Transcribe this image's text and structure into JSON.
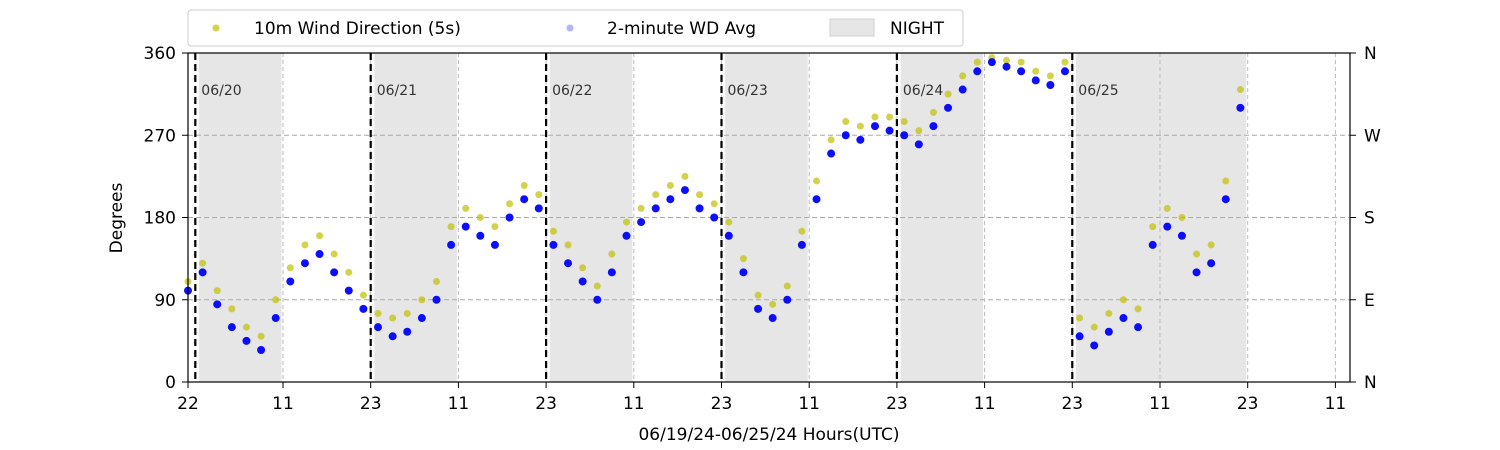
{
  "chart_data": {
    "type": "scatter",
    "title": "",
    "xlabel": "06/19/24-06/25/24  Hours(UTC)",
    "ylabel": "Degrees",
    "xlim": [
      22,
      181
    ],
    "ylim": [
      0,
      360
    ],
    "x_ticks": [
      22,
      35,
      47,
      59,
      71,
      83,
      95,
      107,
      119,
      131,
      143,
      155,
      167,
      179,
      191
    ],
    "x_tick_labels": [
      "22",
      "11",
      "23",
      "11",
      "23",
      "11",
      "23",
      "11",
      "23",
      "11",
      "23",
      "11",
      "23",
      "11"
    ],
    "x_tick_hours": [
      22,
      35,
      47,
      59,
      71,
      83,
      95,
      107,
      119,
      131,
      143,
      155,
      167,
      179
    ],
    "y_ticks": [
      0,
      90,
      180,
      270,
      360
    ],
    "y_tick_labels": [
      "0",
      "90",
      "180",
      "270",
      "360"
    ],
    "y2_tick_labels": [
      "N",
      "E",
      "S",
      "W",
      "N"
    ],
    "grid": "dashed horizontal at 90, 180, 270",
    "legend": {
      "placement": "top",
      "entries": [
        {
          "label": "10m Wind Direction (5s)",
          "color": "#bfbf00",
          "marker": "circle"
        },
        {
          "label": "2-minute WD Avg",
          "color": "#0000ff",
          "marker": "circle"
        },
        {
          "label": "NIGHT",
          "color": "#e6e6e6",
          "marker": "rect"
        }
      ]
    },
    "day_markers": [
      {
        "hour": 23,
        "label": "06/20"
      },
      {
        "hour": 47,
        "label": "06/21"
      },
      {
        "hour": 71,
        "label": "06/22"
      },
      {
        "hour": 95,
        "label": "06/23"
      },
      {
        "hour": 119,
        "label": "06/24"
      },
      {
        "hour": 143,
        "label": "06/25"
      }
    ],
    "night_periods": [
      {
        "start": 23.5,
        "end": 34.8
      },
      {
        "start": 47.5,
        "end": 58.8
      },
      {
        "start": 71.5,
        "end": 82.8
      },
      {
        "start": 95.5,
        "end": 106.8
      },
      {
        "start": 119.5,
        "end": 130.8
      },
      {
        "start": 143.5,
        "end": 166.8
      }
    ],
    "series": [
      {
        "name": "2-minute WD Avg",
        "color": "#0000ff",
        "x": [
          22,
          24,
          26,
          28,
          30,
          32,
          34,
          36,
          38,
          40,
          42,
          44,
          46,
          48,
          50,
          52,
          54,
          56,
          58,
          60,
          62,
          64,
          66,
          68,
          70,
          72,
          74,
          76,
          78,
          80,
          82,
          84,
          86,
          88,
          90,
          92,
          94,
          96,
          98,
          100,
          102,
          104,
          106,
          108,
          110,
          112,
          114,
          116,
          118,
          120,
          122,
          124,
          126,
          128,
          130,
          132,
          134,
          136,
          138,
          140,
          142,
          144,
          146,
          148,
          150,
          152,
          154,
          156,
          158,
          160,
          162,
          164,
          166
        ],
        "y": [
          100,
          120,
          85,
          60,
          45,
          35,
          70,
          110,
          130,
          140,
          120,
          100,
          80,
          60,
          50,
          55,
          70,
          90,
          150,
          170,
          160,
          150,
          180,
          200,
          190,
          150,
          130,
          110,
          90,
          120,
          160,
          175,
          190,
          200,
          210,
          190,
          180,
          160,
          120,
          80,
          70,
          90,
          150,
          200,
          250,
          270,
          265,
          280,
          275,
          270,
          260,
          280,
          300,
          320,
          340,
          350,
          345,
          340,
          330,
          325,
          340,
          50,
          40,
          55,
          70,
          60,
          150,
          170,
          160,
          120,
          130,
          200,
          300
        ]
      },
      {
        "name": "10m Wind Direction (5s)",
        "color": "#bfbf00",
        "x": [
          22,
          24,
          26,
          28,
          30,
          32,
          34,
          36,
          38,
          40,
          42,
          44,
          46,
          48,
          50,
          52,
          54,
          56,
          58,
          60,
          62,
          64,
          66,
          68,
          70,
          72,
          74,
          76,
          78,
          80,
          82,
          84,
          86,
          88,
          90,
          92,
          94,
          96,
          98,
          100,
          102,
          104,
          106,
          108,
          110,
          112,
          114,
          116,
          118,
          120,
          122,
          124,
          126,
          128,
          130,
          132,
          134,
          136,
          138,
          140,
          142,
          144,
          146,
          148,
          150,
          152,
          154,
          156,
          158,
          160,
          162,
          164,
          166
        ],
        "y": [
          110,
          130,
          100,
          80,
          60,
          50,
          90,
          125,
          150,
          160,
          140,
          120,
          95,
          75,
          70,
          75,
          90,
          110,
          170,
          190,
          180,
          170,
          195,
          215,
          205,
          165,
          150,
          125,
          105,
          140,
          175,
          190,
          205,
          215,
          225,
          205,
          195,
          175,
          135,
          95,
          85,
          105,
          165,
          220,
          265,
          285,
          280,
          290,
          290,
          285,
          275,
          295,
          315,
          335,
          350,
          355,
          352,
          350,
          340,
          335,
          350,
          70,
          60,
          75,
          90,
          80,
          170,
          190,
          180,
          140,
          150,
          220,
          320
        ]
      }
    ]
  }
}
